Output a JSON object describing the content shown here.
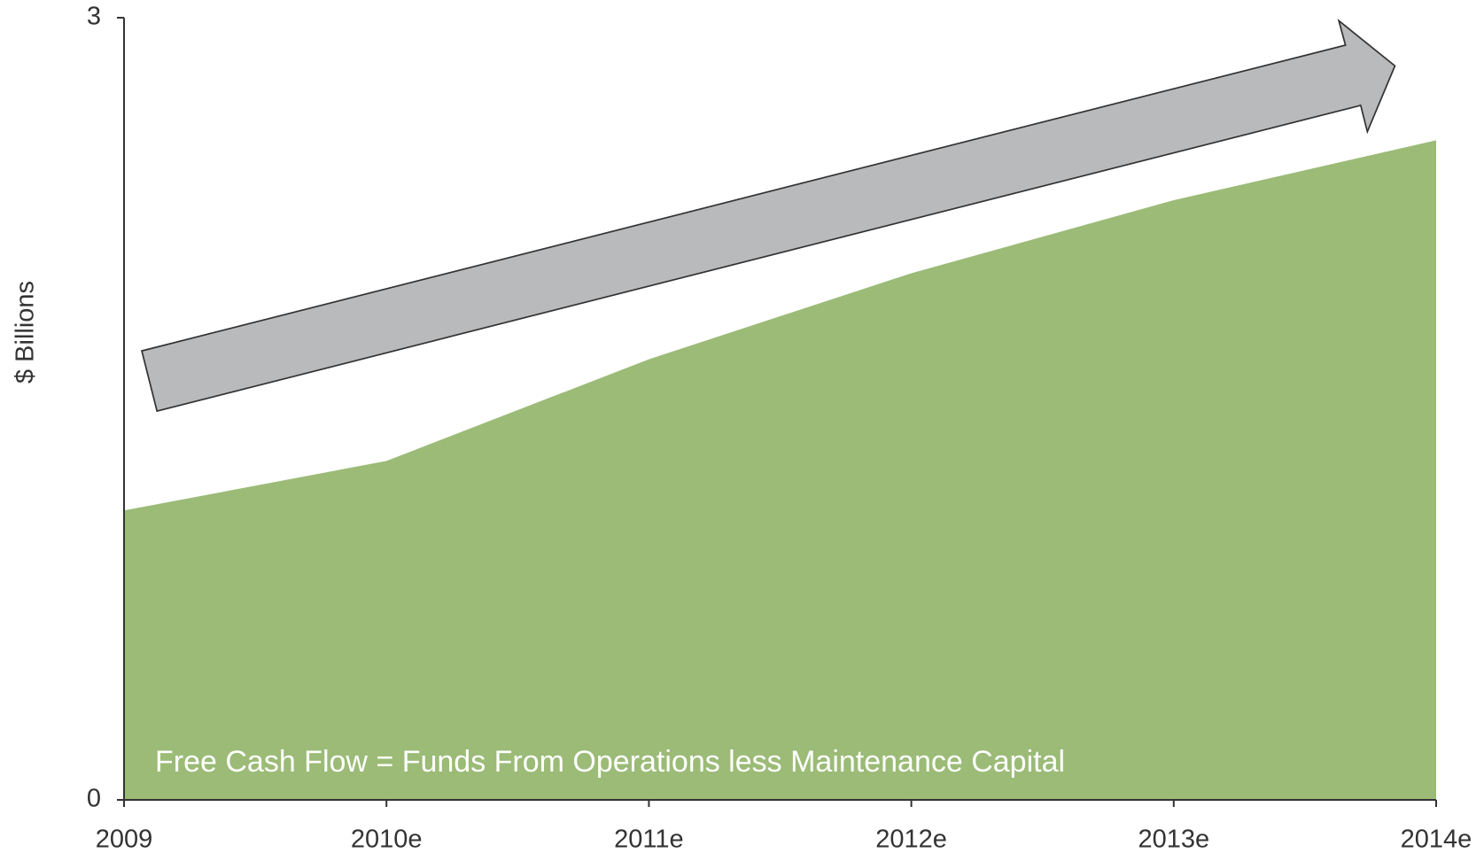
{
  "chart_data": {
    "type": "area",
    "y_label": "$ Billions",
    "annotation": "Free Cash Flow = Funds From Operations less Maintenance Capital",
    "categories": [
      "2009",
      "2010e",
      "2011e",
      "2012e",
      "2013e",
      "2014e"
    ],
    "values": [
      1.11,
      1.3,
      1.69,
      2.02,
      2.3,
      2.53
    ],
    "color": "#9bbb77",
    "ylim": [
      0,
      3
    ],
    "yticks": [
      0,
      3
    ],
    "grid": false
  }
}
